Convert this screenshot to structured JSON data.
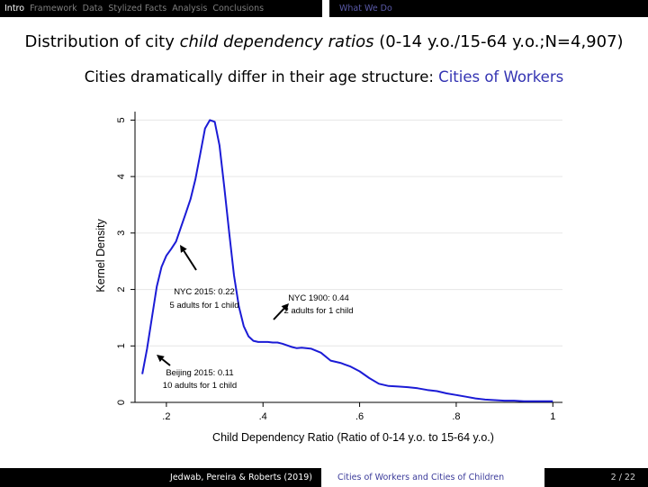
{
  "nav": {
    "sections": [
      "Intro",
      "Framework",
      "Data",
      "Stylized Facts",
      "Analysis",
      "Conclusions"
    ],
    "active_index": 0,
    "subsection": "What We Do"
  },
  "slide": {
    "title_part1": "Distribution of city ",
    "title_italic": "child dependency ratios",
    "title_part2": " (0-14 y.o./15-64 y.o.;N=4,907)",
    "subtitle_part1": "Cities dramatically differ in their age structure:  ",
    "subtitle_accent": "Cities of Workers"
  },
  "colors": {
    "curve": "#1b1bd6",
    "accent": "#3333b2",
    "grid": "#e6e6e6"
  },
  "chart_data": {
    "type": "line",
    "xlabel": "Child Dependency Ratio (Ratio of 0-14 y.o. to 15-64 y.o.)",
    "ylabel": "Kernel Density",
    "xlim": [
      0.135,
      1.02
    ],
    "ylim": [
      0,
      5.15
    ],
    "x_ticks": [
      0.2,
      0.4,
      0.6,
      0.8,
      1
    ],
    "x_tick_labels": [
      ".2",
      ".4",
      ".6",
      ".8",
      "1"
    ],
    "y_ticks": [
      0,
      1,
      2,
      3,
      4,
      5
    ],
    "y_tick_labels": [
      "0",
      "1",
      "2",
      "3",
      "4",
      "5"
    ],
    "grid": true,
    "series": [
      {
        "x": [
          0.15,
          0.16,
          0.17,
          0.18,
          0.19,
          0.2,
          0.21,
          0.22,
          0.23,
          0.24,
          0.25,
          0.26,
          0.27,
          0.28,
          0.29,
          0.3,
          0.31,
          0.32,
          0.33,
          0.34,
          0.35,
          0.36,
          0.37,
          0.38,
          0.39,
          0.4,
          0.41,
          0.42,
          0.43,
          0.44,
          0.45,
          0.46,
          0.47,
          0.48,
          0.5,
          0.52,
          0.54,
          0.56,
          0.58,
          0.6,
          0.62,
          0.64,
          0.66,
          0.68,
          0.7,
          0.72,
          0.74,
          0.76,
          0.78,
          0.8,
          0.82,
          0.84,
          0.86,
          0.88,
          0.9,
          0.92,
          0.94,
          0.96,
          0.98,
          1.0
        ],
        "y": [
          0.5,
          0.95,
          1.5,
          2.05,
          2.4,
          2.6,
          2.72,
          2.85,
          3.1,
          3.35,
          3.6,
          3.95,
          4.4,
          4.85,
          5.0,
          4.97,
          4.55,
          3.8,
          3.0,
          2.25,
          1.7,
          1.35,
          1.17,
          1.09,
          1.07,
          1.07,
          1.07,
          1.06,
          1.06,
          1.04,
          1.01,
          0.98,
          0.96,
          0.97,
          0.95,
          0.88,
          0.74,
          0.7,
          0.64,
          0.55,
          0.43,
          0.33,
          0.29,
          0.28,
          0.27,
          0.25,
          0.22,
          0.2,
          0.16,
          0.13,
          0.1,
          0.07,
          0.05,
          0.04,
          0.03,
          0.03,
          0.02,
          0.02,
          0.02,
          0.02
        ]
      }
    ],
    "annotations": [
      {
        "line1": "NYC 2015: 0.22",
        "line2": "5 adults for 1 child"
      },
      {
        "line1": "NYC 1900: 0.44",
        "line2": "2 adults for 1 child"
      },
      {
        "line1": "Beijing 2015: 0.11",
        "line2": "10 adults for 1 child"
      }
    ]
  },
  "footer": {
    "authors": "Jedwab, Pereira & Roberts (2019)",
    "short_title": "Cities of Workers and Cities of Children",
    "page": "2 / 22"
  }
}
